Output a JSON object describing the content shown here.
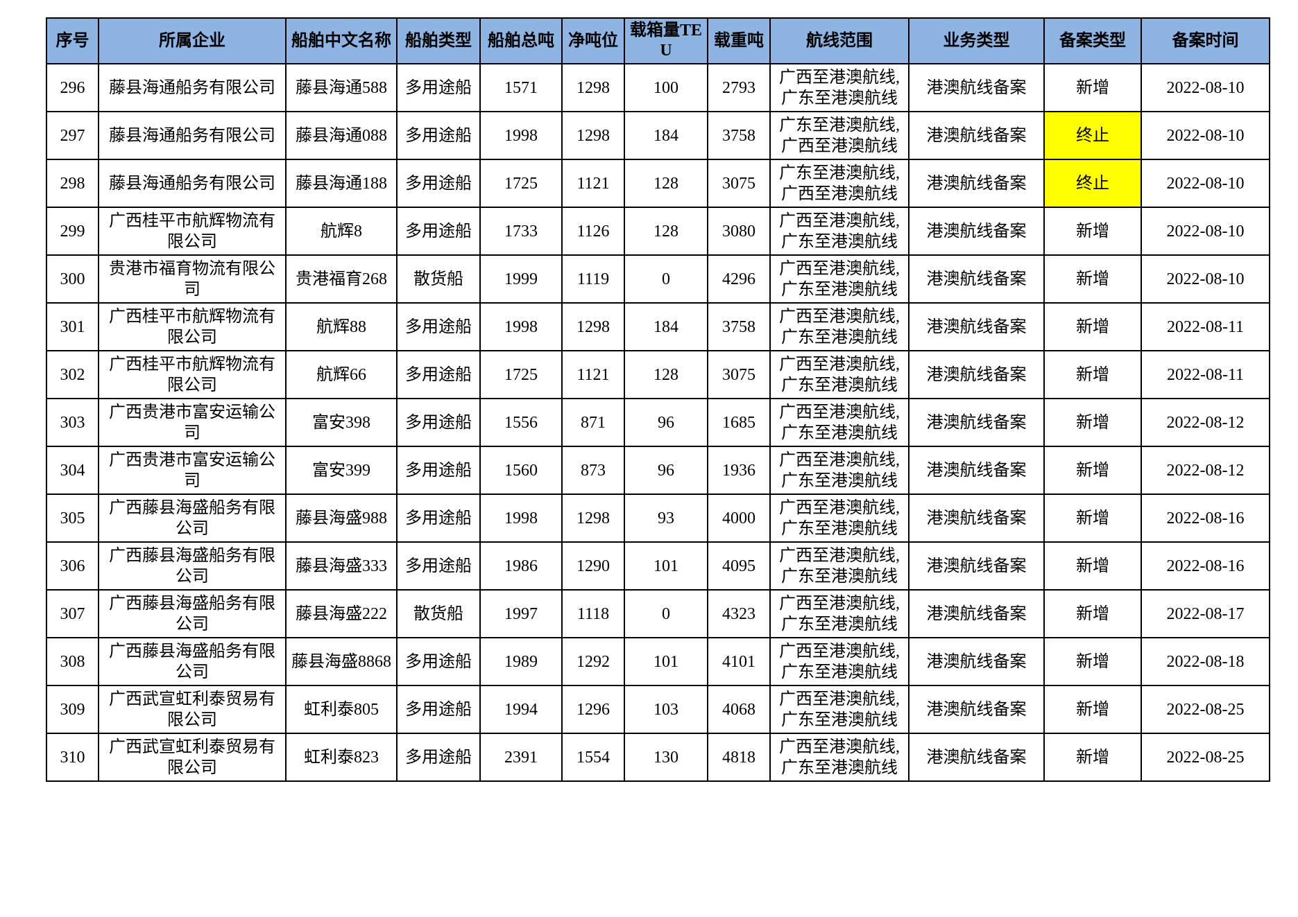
{
  "colors": {
    "header_bg": "#8DB4E2",
    "highlight_bg": "#FFFF00",
    "border": "#000000",
    "text": "#000000",
    "page_bg": "#FFFFFF"
  },
  "table": {
    "columns": [
      {
        "key": "index",
        "label": "序号"
      },
      {
        "key": "company",
        "label": "所属企业"
      },
      {
        "key": "ship_name",
        "label": "船舶中文名称"
      },
      {
        "key": "ship_type",
        "label": "船舶类型"
      },
      {
        "key": "gross_tonnage",
        "label": "船舶总吨"
      },
      {
        "key": "net_tonnage",
        "label": "净吨位"
      },
      {
        "key": "teu",
        "label": "载箱量TEU"
      },
      {
        "key": "deadweight",
        "label": "载重吨"
      },
      {
        "key": "route",
        "label": "航线范围"
      },
      {
        "key": "business_type",
        "label": "业务类型"
      },
      {
        "key": "record_type",
        "label": "备案类型"
      },
      {
        "key": "record_date",
        "label": "备案时间"
      }
    ],
    "rows": [
      {
        "index": "296",
        "company": "藤县海通船务有限公司",
        "ship_name": "藤县海通588",
        "ship_type": "多用途船",
        "gross_tonnage": "1571",
        "net_tonnage": "1298",
        "teu": "100",
        "deadweight": "2793",
        "route": "广西至港澳航线,广东至港澳航线",
        "business_type": "港澳航线备案",
        "record_type": "新增",
        "record_type_highlighted": false,
        "record_date": "2022-08-10"
      },
      {
        "index": "297",
        "company": "藤县海通船务有限公司",
        "ship_name": "藤县海通088",
        "ship_type": "多用途船",
        "gross_tonnage": "1998",
        "net_tonnage": "1298",
        "teu": "184",
        "deadweight": "3758",
        "route": "广东至港澳航线,广西至港澳航线",
        "business_type": "港澳航线备案",
        "record_type": "终止",
        "record_type_highlighted": true,
        "record_date": "2022-08-10"
      },
      {
        "index": "298",
        "company": "藤县海通船务有限公司",
        "ship_name": "藤县海通188",
        "ship_type": "多用途船",
        "gross_tonnage": "1725",
        "net_tonnage": "1121",
        "teu": "128",
        "deadweight": "3075",
        "route": "广东至港澳航线,广西至港澳航线",
        "business_type": "港澳航线备案",
        "record_type": "终止",
        "record_type_highlighted": true,
        "record_date": "2022-08-10"
      },
      {
        "index": "299",
        "company": "广西桂平市航辉物流有限公司",
        "ship_name": "航辉8",
        "ship_type": "多用途船",
        "gross_tonnage": "1733",
        "net_tonnage": "1126",
        "teu": "128",
        "deadweight": "3080",
        "route": "广西至港澳航线,广东至港澳航线",
        "business_type": "港澳航线备案",
        "record_type": "新增",
        "record_type_highlighted": false,
        "record_date": "2022-08-10"
      },
      {
        "index": "300",
        "company": "贵港市福育物流有限公司",
        "ship_name": "贵港福育268",
        "ship_type": "散货船",
        "gross_tonnage": "1999",
        "net_tonnage": "1119",
        "teu": "0",
        "deadweight": "4296",
        "route": "广西至港澳航线,广东至港澳航线",
        "business_type": "港澳航线备案",
        "record_type": "新增",
        "record_type_highlighted": false,
        "record_date": "2022-08-10"
      },
      {
        "index": "301",
        "company": "广西桂平市航辉物流有限公司",
        "ship_name": "航辉88",
        "ship_type": "多用途船",
        "gross_tonnage": "1998",
        "net_tonnage": "1298",
        "teu": "184",
        "deadweight": "3758",
        "route": "广西至港澳航线,广东至港澳航线",
        "business_type": "港澳航线备案",
        "record_type": "新增",
        "record_type_highlighted": false,
        "record_date": "2022-08-11"
      },
      {
        "index": "302",
        "company": "广西桂平市航辉物流有限公司",
        "ship_name": "航辉66",
        "ship_type": "多用途船",
        "gross_tonnage": "1725",
        "net_tonnage": "1121",
        "teu": "128",
        "deadweight": "3075",
        "route": "广西至港澳航线,广东至港澳航线",
        "business_type": "港澳航线备案",
        "record_type": "新增",
        "record_type_highlighted": false,
        "record_date": "2022-08-11"
      },
      {
        "index": "303",
        "company": "广西贵港市富安运输公司",
        "ship_name": "富安398",
        "ship_type": "多用途船",
        "gross_tonnage": "1556",
        "net_tonnage": "871",
        "teu": "96",
        "deadweight": "1685",
        "route": "广西至港澳航线,广东至港澳航线",
        "business_type": "港澳航线备案",
        "record_type": "新增",
        "record_type_highlighted": false,
        "record_date": "2022-08-12"
      },
      {
        "index": "304",
        "company": "广西贵港市富安运输公司",
        "ship_name": "富安399",
        "ship_type": "多用途船",
        "gross_tonnage": "1560",
        "net_tonnage": "873",
        "teu": "96",
        "deadweight": "1936",
        "route": "广西至港澳航线,广东至港澳航线",
        "business_type": "港澳航线备案",
        "record_type": "新增",
        "record_type_highlighted": false,
        "record_date": "2022-08-12"
      },
      {
        "index": "305",
        "company": "广西藤县海盛船务有限公司",
        "ship_name": "藤县海盛988",
        "ship_type": "多用途船",
        "gross_tonnage": "1998",
        "net_tonnage": "1298",
        "teu": "93",
        "deadweight": "4000",
        "route": "广西至港澳航线,广东至港澳航线",
        "business_type": "港澳航线备案",
        "record_type": "新增",
        "record_type_highlighted": false,
        "record_date": "2022-08-16"
      },
      {
        "index": "306",
        "company": "广西藤县海盛船务有限公司",
        "ship_name": "藤县海盛333",
        "ship_type": "多用途船",
        "gross_tonnage": "1986",
        "net_tonnage": "1290",
        "teu": "101",
        "deadweight": "4095",
        "route": "广西至港澳航线,广东至港澳航线",
        "business_type": "港澳航线备案",
        "record_type": "新增",
        "record_type_highlighted": false,
        "record_date": "2022-08-16"
      },
      {
        "index": "307",
        "company": "广西藤县海盛船务有限公司",
        "ship_name": "藤县海盛222",
        "ship_type": "散货船",
        "gross_tonnage": "1997",
        "net_tonnage": "1118",
        "teu": "0",
        "deadweight": "4323",
        "route": "广西至港澳航线,广东至港澳航线",
        "business_type": "港澳航线备案",
        "record_type": "新增",
        "record_type_highlighted": false,
        "record_date": "2022-08-17"
      },
      {
        "index": "308",
        "company": "广西藤县海盛船务有限公司",
        "ship_name": "藤县海盛8868",
        "ship_type": "多用途船",
        "gross_tonnage": "1989",
        "net_tonnage": "1292",
        "teu": "101",
        "deadweight": "4101",
        "route": "广西至港澳航线,广东至港澳航线",
        "business_type": "港澳航线备案",
        "record_type": "新增",
        "record_type_highlighted": false,
        "record_date": "2022-08-18"
      },
      {
        "index": "309",
        "company": "广西武宣虹利泰贸易有限公司",
        "ship_name": "虹利泰805",
        "ship_type": "多用途船",
        "gross_tonnage": "1994",
        "net_tonnage": "1296",
        "teu": "103",
        "deadweight": "4068",
        "route": "广西至港澳航线,广东至港澳航线",
        "business_type": "港澳航线备案",
        "record_type": "新增",
        "record_type_highlighted": false,
        "record_date": "2022-08-25"
      },
      {
        "index": "310",
        "company": "广西武宣虹利泰贸易有限公司",
        "ship_name": "虹利泰823",
        "ship_type": "多用途船",
        "gross_tonnage": "2391",
        "net_tonnage": "1554",
        "teu": "130",
        "deadweight": "4818",
        "route": "广西至港澳航线,广东至港澳航线",
        "business_type": "港澳航线备案",
        "record_type": "新增",
        "record_type_highlighted": false,
        "record_date": "2022-08-25"
      }
    ]
  }
}
